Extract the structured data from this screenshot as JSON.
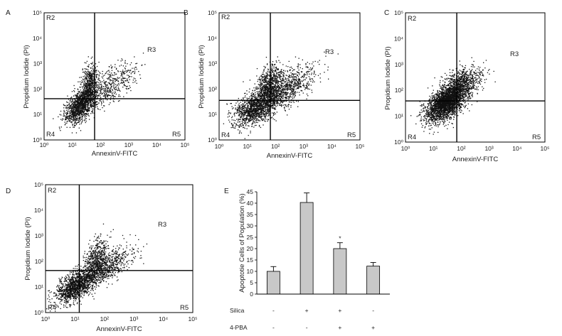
{
  "chart_data": [
    {
      "panel": "A",
      "type": "scatter",
      "xlabel": "AnnexinV-FITC",
      "ylabel": "Propidium Iodide (PI)",
      "log_axes": true,
      "xlim": [
        1,
        100000
      ],
      "ylim": [
        1,
        100000
      ],
      "x_tick_labels": [
        "10⁰",
        "10¹",
        "10²",
        "10³",
        "10⁴",
        "10⁵"
      ],
      "y_tick_labels": [
        "10⁰",
        "10¹",
        "10²",
        "10³",
        "10⁴",
        "10⁵"
      ],
      "gate": {
        "annexin_threshold": 62,
        "pi_threshold": 42
      },
      "quadrant_labels": [
        "R2",
        "R3",
        "R4",
        "R5"
      ],
      "dot_color": "#111111",
      "approx_event_count": 2200,
      "populations": [
        {
          "weight": 0.5,
          "log10_mean": [
            1.25,
            1.3
          ],
          "log10_sd": [
            0.25,
            0.33
          ],
          "corr": 0.5
        },
        {
          "weight": 0.25,
          "log10_mean": [
            1.62,
            2.15
          ],
          "log10_sd": [
            0.14,
            0.42
          ],
          "corr": 0.2
        },
        {
          "weight": 0.25,
          "log10_mean": [
            2.3,
            2.1
          ],
          "log10_sd": [
            0.5,
            0.45
          ],
          "corr": 0.65
        }
      ]
    },
    {
      "panel": "B",
      "type": "scatter",
      "xlabel": "AnnexinV-FITC",
      "ylabel": "Propidium Iodide (PI)",
      "log_axes": true,
      "xlim": [
        1,
        100000
      ],
      "ylim": [
        1,
        100000
      ],
      "x_tick_labels": [
        "10⁰",
        "10¹",
        "10²",
        "10³",
        "10⁴",
        "10⁵"
      ],
      "y_tick_labels": [
        "10⁰",
        "10¹",
        "10²",
        "10³",
        "10⁴",
        "10⁵"
      ],
      "gate": {
        "annexin_threshold": 66,
        "pi_threshold": 36
      },
      "quadrant_labels": [
        "R2",
        "R3",
        "R4",
        "R5"
      ],
      "dot_color": "#111111",
      "approx_event_count": 2800,
      "populations": [
        {
          "weight": 0.5,
          "log10_mean": [
            1.35,
            1.3
          ],
          "log10_sd": [
            0.42,
            0.38
          ],
          "corr": 0.55
        },
        {
          "weight": 0.22,
          "log10_mean": [
            1.8,
            2.2
          ],
          "log10_sd": [
            0.22,
            0.4
          ],
          "corr": 0.3
        },
        {
          "weight": 0.28,
          "log10_mean": [
            2.35,
            2.0
          ],
          "log10_sd": [
            0.55,
            0.45
          ],
          "corr": 0.65
        }
      ]
    },
    {
      "panel": "C",
      "type": "scatter",
      "xlabel": "AnnexinV-FITC",
      "ylabel": "Propidium Iodide (PI)",
      "log_axes": true,
      "xlim": [
        1,
        100000
      ],
      "ylim": [
        1,
        100000
      ],
      "x_tick_labels": [
        "10⁰",
        "10¹",
        "10²",
        "10³",
        "10⁴",
        "10⁵"
      ],
      "y_tick_labels": [
        "10⁰",
        "10¹",
        "10²",
        "10³",
        "10⁴",
        "10⁵"
      ],
      "gate": {
        "annexin_threshold": 69,
        "pi_threshold": 39
      },
      "quadrant_labels": [
        "R2",
        "R3",
        "R4",
        "R5"
      ],
      "dot_color": "#111111",
      "approx_event_count": 3400,
      "populations": [
        {
          "weight": 0.75,
          "log10_mean": [
            1.45,
            1.5
          ],
          "log10_sd": [
            0.36,
            0.36
          ],
          "corr": 0.55
        },
        {
          "weight": 0.25,
          "log10_mean": [
            2.0,
            2.2
          ],
          "log10_sd": [
            0.38,
            0.35
          ],
          "corr": 0.45
        }
      ]
    },
    {
      "panel": "D",
      "type": "scatter",
      "xlabel": "AnnexinV-FITC",
      "ylabel": "Propidium Iodide (PI)",
      "log_axes": true,
      "xlim": [
        1,
        100000
      ],
      "ylim": [
        1,
        100000
      ],
      "x_tick_labels": [
        "10⁰",
        "10¹",
        "10²",
        "10³",
        "10⁴",
        "10⁵"
      ],
      "y_tick_labels": [
        "10⁰",
        "10¹",
        "10²",
        "10³",
        "10⁴",
        "10⁵"
      ],
      "gate": {
        "annexin_threshold": 14,
        "pi_threshold": 44
      },
      "quadrant_labels": [
        "R2",
        "R3",
        "R4",
        "R5"
      ],
      "dot_color": "#111111",
      "approx_event_count": 2500,
      "populations": [
        {
          "weight": 0.55,
          "log10_mean": [
            1.05,
            1.05
          ],
          "log10_sd": [
            0.35,
            0.35
          ],
          "corr": 0.6
        },
        {
          "weight": 0.2,
          "log10_mean": [
            1.75,
            2.05
          ],
          "log10_sd": [
            0.2,
            0.42
          ],
          "corr": 0.3
        },
        {
          "weight": 0.25,
          "log10_mean": [
            2.1,
            1.75
          ],
          "log10_sd": [
            0.45,
            0.4
          ],
          "corr": 0.7
        }
      ]
    },
    {
      "panel": "E",
      "type": "bar",
      "ylabel": "Apoptotie Cells of Population (%)",
      "ylim": [
        0,
        45
      ],
      "y_ticks": [
        0,
        5,
        10,
        15,
        20,
        25,
        30,
        35,
        40,
        45
      ],
      "values": [
        10,
        40.3,
        20,
        12.3
      ],
      "errors": [
        2.1,
        4.2,
        2.6,
        1.6
      ],
      "conditions": [
        {
          "name": "Silica",
          "values": [
            "-",
            "+",
            "+",
            "-"
          ]
        },
        {
          "name": "4-PBA",
          "values": [
            "-",
            "-",
            "+",
            "+"
          ]
        }
      ],
      "annotations": [
        {
          "bar_index": 2,
          "text": "*"
        }
      ],
      "bar_color": "#c8c8c8"
    }
  ]
}
